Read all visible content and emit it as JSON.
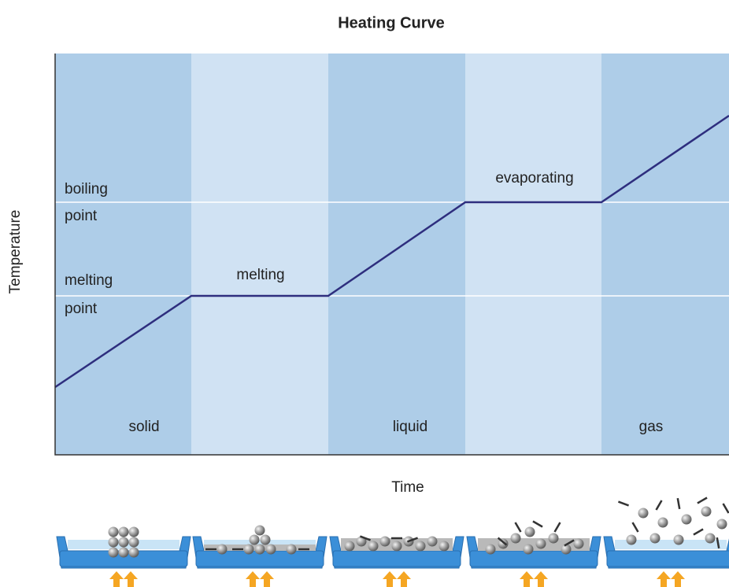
{
  "title": "Heating Curve",
  "y_axis_label": "Temperature",
  "x_axis_label": "Time",
  "reference_lines": [
    {
      "label_lines": [
        "boiling",
        "point"
      ]
    },
    {
      "label_lines": [
        "melting",
        "point"
      ]
    }
  ],
  "plateaus": [
    "melting",
    "evaporating"
  ],
  "phases": [
    "solid",
    "liquid",
    "gas"
  ]
}
